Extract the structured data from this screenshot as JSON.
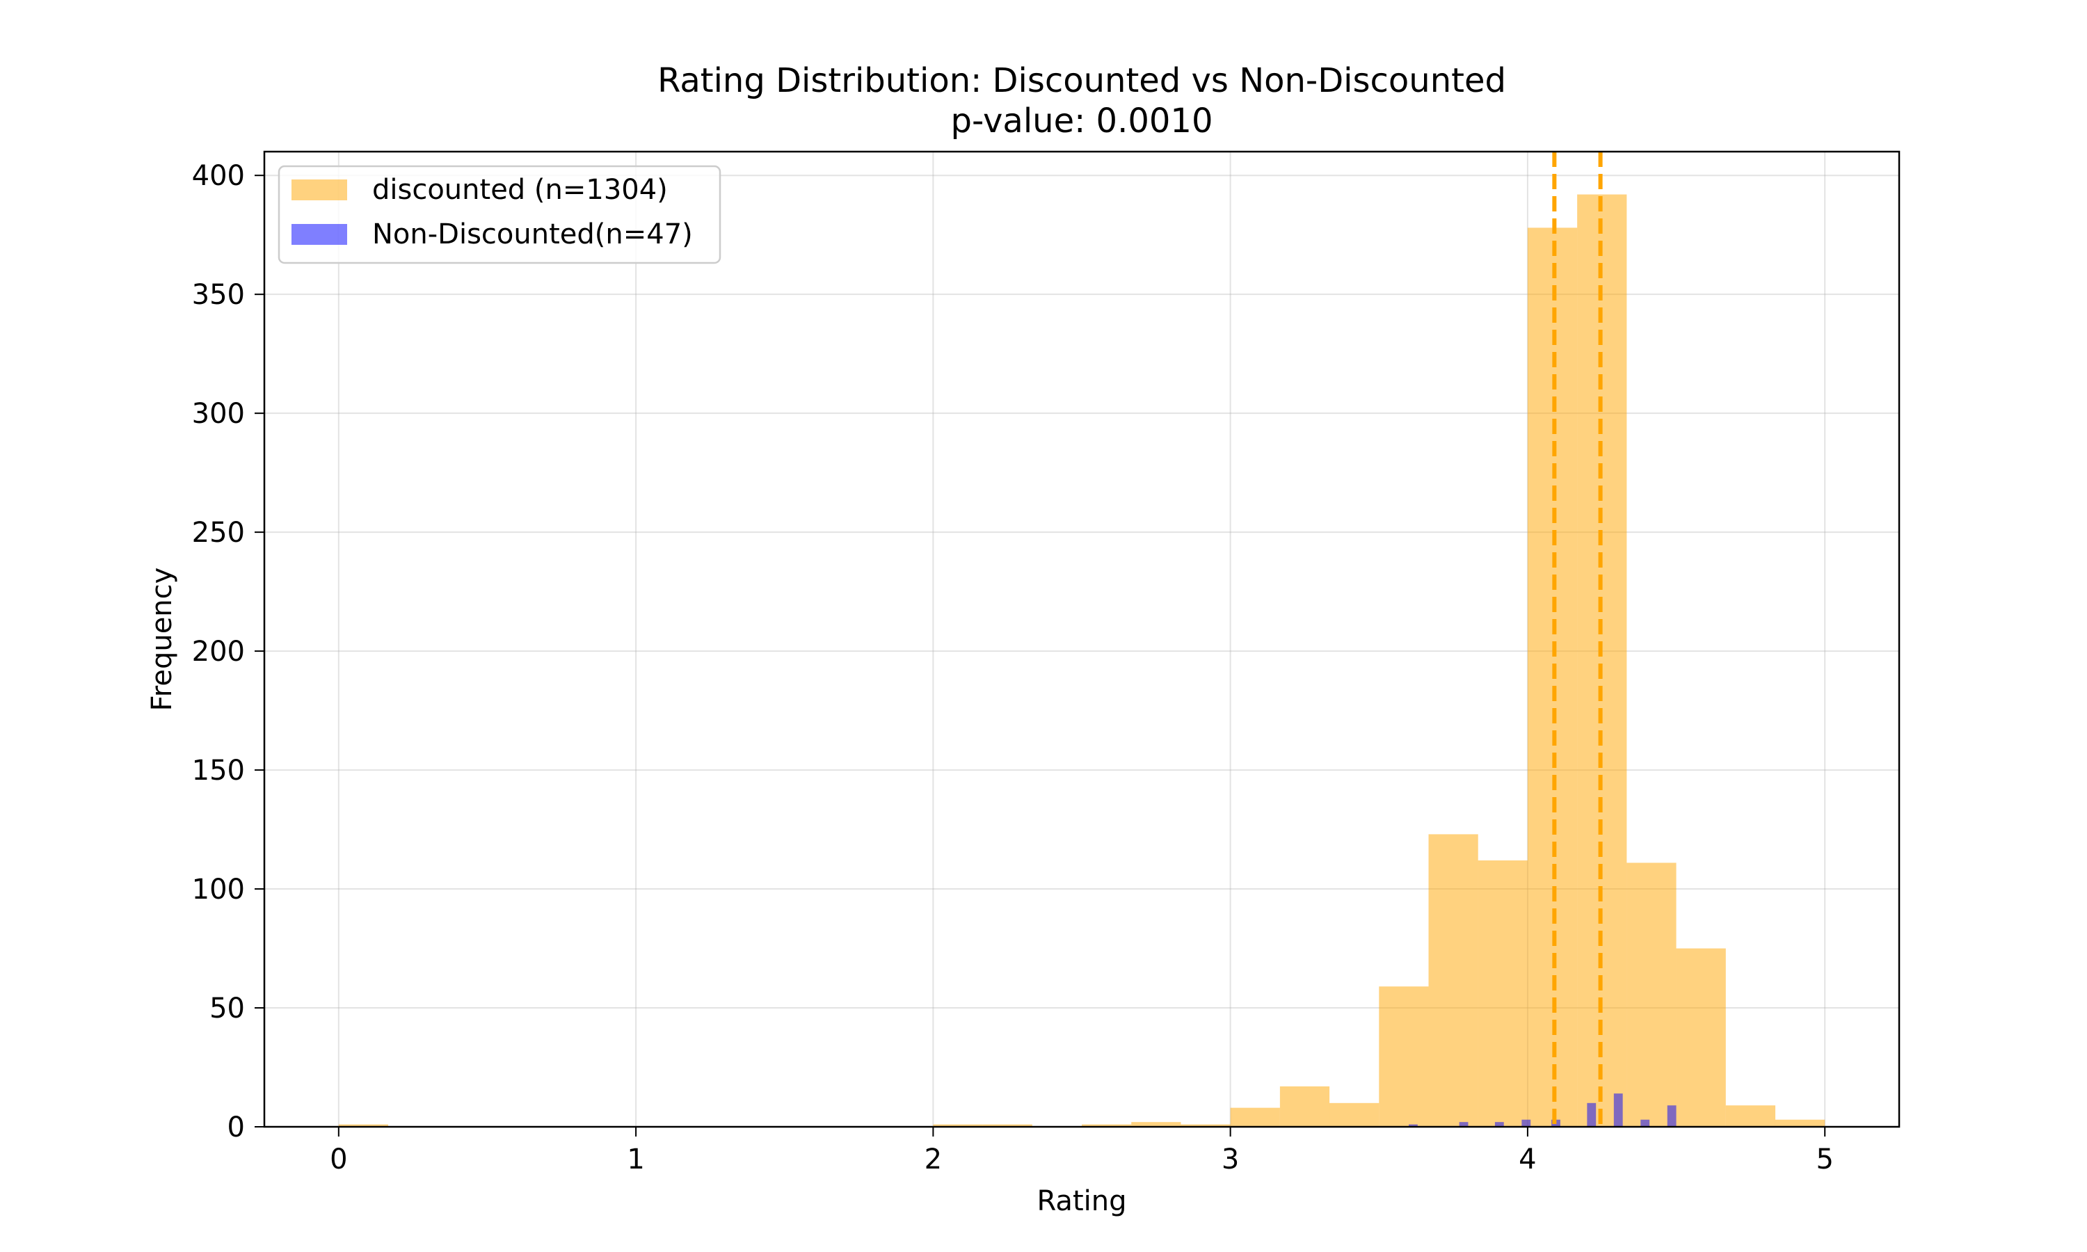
{
  "chart_data": {
    "type": "bar",
    "title": "Rating Distribution: Discounted vs Non-Discounted",
    "subtitle": "p-value: 0.0010",
    "xlabel": "Rating",
    "ylabel": "Frequency",
    "xlim": [
      -0.25,
      5.25
    ],
    "ylim": [
      0,
      410
    ],
    "xticks": [
      0,
      1,
      2,
      3,
      4,
      5
    ],
    "yticks": [
      0,
      50,
      100,
      150,
      200,
      250,
      300,
      350,
      400
    ],
    "grid": true,
    "legend_position": "top-left",
    "mean_lines": [
      {
        "x": 4.09,
        "color": "#FFA500"
      },
      {
        "x": 4.245,
        "color": "#FFA500"
      }
    ],
    "series": [
      {
        "name": "discounted (n=1304)",
        "color": "#FFA500",
        "opacity": 0.5,
        "bin_width": 0.1667,
        "bins": [
          {
            "x": 0.0,
            "value": 1
          },
          {
            "x": 2.0,
            "value": 1
          },
          {
            "x": 2.1667,
            "value": 1
          },
          {
            "x": 2.5,
            "value": 1
          },
          {
            "x": 2.6667,
            "value": 2
          },
          {
            "x": 2.8333,
            "value": 1
          },
          {
            "x": 3.0,
            "value": 8
          },
          {
            "x": 3.1667,
            "value": 17
          },
          {
            "x": 3.3333,
            "value": 10
          },
          {
            "x": 3.5,
            "value": 59
          },
          {
            "x": 3.6667,
            "value": 123
          },
          {
            "x": 3.8333,
            "value": 112
          },
          {
            "x": 4.0,
            "value": 378
          },
          {
            "x": 4.1667,
            "value": 392
          },
          {
            "x": 4.3333,
            "value": 111
          },
          {
            "x": 4.5,
            "value": 75
          },
          {
            "x": 4.6667,
            "value": 9
          },
          {
            "x": 4.8333,
            "value": 3
          }
        ]
      },
      {
        "name": "Non-Discounted(n=47)",
        "color": "#0000FF",
        "opacity": 0.5,
        "bin_width": 0.03,
        "bins": [
          {
            "x": 3.6,
            "value": 1
          },
          {
            "x": 3.77,
            "value": 2
          },
          {
            "x": 3.89,
            "value": 2
          },
          {
            "x": 3.98,
            "value": 3
          },
          {
            "x": 4.08,
            "value": 3
          },
          {
            "x": 4.2,
            "value": 10
          },
          {
            "x": 4.29,
            "value": 14
          },
          {
            "x": 4.38,
            "value": 3
          },
          {
            "x": 4.47,
            "value": 9
          }
        ]
      }
    ]
  }
}
